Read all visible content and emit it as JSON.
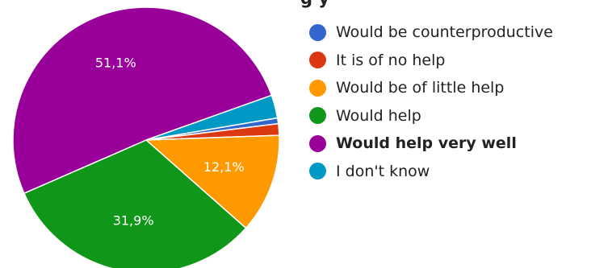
{
  "chart_data": {
    "type": "pie",
    "title": "",
    "title_fragment": "g    y",
    "categories": [
      "Would be counterproductive",
      "It is of no help",
      "Would be of little help",
      "Would help",
      "Would help very well",
      "I don't know"
    ],
    "values": [
      0.7,
      1.4,
      12.1,
      31.9,
      51.1,
      2.8
    ],
    "data_labels": [
      "",
      "",
      "12,1%",
      "31,9%",
      "51,1%",
      ""
    ],
    "colors": [
      "#3366cc",
      "#dc3912",
      "#ff9900",
      "#109618",
      "#990099",
      "#0099c6"
    ],
    "legend_position": "right",
    "highlighted": "Would help very well",
    "legend": [
      {
        "label": "Would be counterproductive",
        "color": "#3366cc",
        "bold": false
      },
      {
        "label": "It is of no help",
        "color": "#dc3912",
        "bold": false
      },
      {
        "label": "Would be of little help",
        "color": "#ff9900",
        "bold": false
      },
      {
        "label": "Would help",
        "color": "#109618",
        "bold": false
      },
      {
        "label": "Would help very well",
        "color": "#990099",
        "bold": true
      },
      {
        "label": "I don't know",
        "color": "#0099c6",
        "bold": false
      }
    ]
  }
}
